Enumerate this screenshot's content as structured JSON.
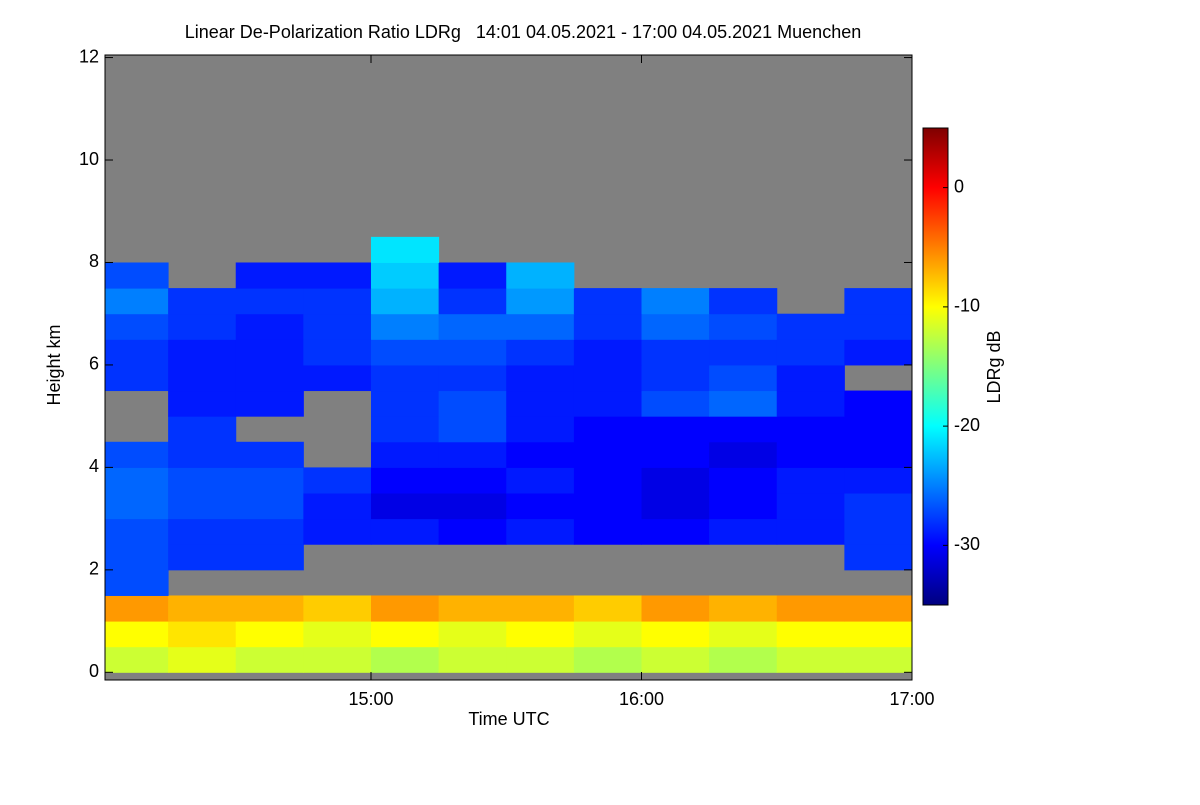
{
  "chart_data": {
    "type": "heatmap",
    "title": "Linear De-Polarization Ratio LDRg   14:01 04.05.2021 - 17:00 04.05.2021 Muenchen",
    "x_label": "Time UTC",
    "y_label": "Height km",
    "colorbar_label": "LDRg dB",
    "xlim": [
      14.0167,
      17.0
    ],
    "xticks": [
      {
        "value": 15,
        "label": "15:00"
      },
      {
        "value": 16,
        "label": "16:00"
      },
      {
        "value": 17,
        "label": "17:00"
      }
    ],
    "ylim": [
      -0.15,
      12.05
    ],
    "yticks": [
      0,
      2,
      4,
      6,
      8,
      10,
      12
    ],
    "zlim": [
      -35,
      5
    ],
    "zticks": [
      0,
      -10,
      -20,
      -30
    ],
    "colormap": [
      "#00007f",
      "#0000ff",
      "#007fff",
      "#00ffff",
      "#7fff7f",
      "#ffff00",
      "#ff7f00",
      "#ff0000",
      "#7f0000"
    ],
    "missing_color": "#808080",
    "x_edges": [
      14.0167,
      14.25,
      14.5,
      14.75,
      15.0,
      15.25,
      15.5,
      15.75,
      16.0,
      16.25,
      16.5,
      16.75,
      17.0
    ],
    "y_edges": [
      0,
      0.5,
      1,
      1.5,
      2,
      2.5,
      3,
      3.5,
      4,
      4.5,
      5,
      5.5,
      6,
      6.5,
      7,
      7.5,
      8,
      8.5
    ],
    "z": [
      [
        -12,
        -11,
        -12,
        -12,
        -13,
        -12,
        -12,
        -13,
        -12,
        -13,
        -12,
        -12
      ],
      [
        -10,
        -9,
        -10,
        -11,
        -10,
        -11,
        -10,
        -11,
        -10,
        -11,
        -10,
        -10
      ],
      [
        -6,
        -7,
        -7,
        -8,
        -6,
        -7,
        -7,
        -8,
        -6,
        -7,
        -6,
        -6
      ],
      [
        -27,
        null,
        null,
        null,
        null,
        null,
        null,
        null,
        null,
        null,
        null,
        null
      ],
      [
        -27,
        -28,
        -28,
        null,
        null,
        null,
        null,
        null,
        null,
        null,
        null,
        -28
      ],
      [
        -27,
        -28,
        -28,
        -29,
        -29,
        -30,
        -29,
        -30,
        -30,
        -29,
        -29,
        -28
      ],
      [
        -26,
        -27,
        -27,
        -29,
        -31,
        -31,
        -30,
        -30,
        -31,
        -30,
        -29,
        -28
      ],
      [
        -26,
        -27,
        -27,
        -28,
        -30,
        -30,
        -29,
        -30,
        -31,
        -30,
        -29,
        -29
      ],
      [
        -27,
        -28,
        -28,
        null,
        -29,
        -29,
        -30,
        -30,
        -30,
        -31,
        -30,
        -30
      ],
      [
        null,
        -28,
        null,
        null,
        -28,
        -27,
        -29,
        -30,
        -30,
        -30,
        -30,
        -30
      ],
      [
        null,
        -29,
        -29,
        null,
        -28,
        -27,
        -29,
        -29,
        -27,
        -26,
        -29,
        -30
      ],
      [
        -28,
        -29,
        -29,
        -29,
        -28,
        -28,
        -29,
        -29,
        -28,
        -27,
        -29,
        null
      ],
      [
        -28,
        -29,
        -29,
        -28,
        -27,
        -27,
        -28,
        -29,
        -28,
        -28,
        -28,
        -29
      ],
      [
        -27,
        -28,
        -29,
        -28,
        -25,
        -26,
        -26,
        -28,
        -26,
        -27,
        -28,
        -28
      ],
      [
        -25,
        -28,
        -28,
        -28,
        -23,
        -28,
        -24,
        -28,
        -25,
        -28,
        null,
        -28
      ],
      [
        -27,
        null,
        -29,
        -29,
        -22,
        -29,
        -23,
        null,
        null,
        null,
        null,
        null
      ],
      [
        null,
        null,
        null,
        null,
        -21,
        null,
        null,
        null,
        null,
        null,
        null,
        null
      ]
    ]
  }
}
